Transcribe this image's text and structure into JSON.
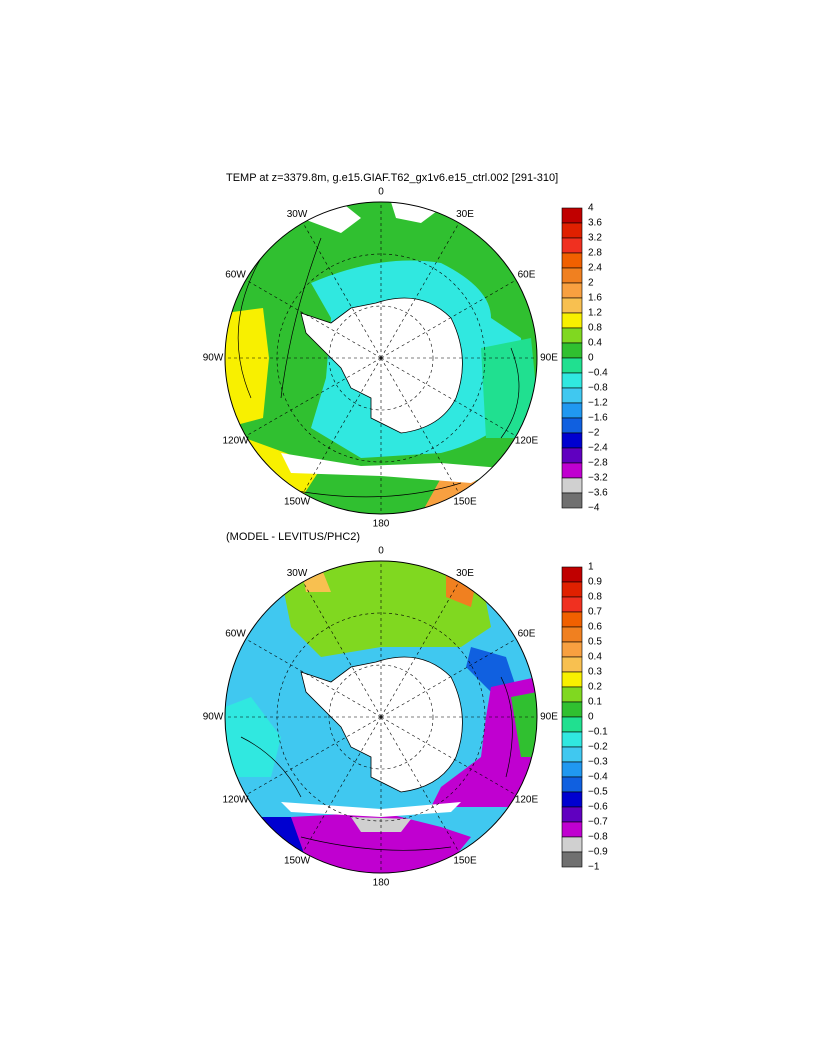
{
  "panels": [
    {
      "title": "TEMP at z=3379.8m, g.e15.GIAF.T62_gx1v6.e15_ctrl.002 [291-310]",
      "lon_labels": [
        "0",
        "30E",
        "60E",
        "90E",
        "120E",
        "150E",
        "180",
        "150W",
        "120W",
        "90W",
        "60W",
        "30W"
      ],
      "colorbar": {
        "labels": [
          "4",
          "3.6",
          "3.2",
          "2.8",
          "2.4",
          "2",
          "1.6",
          "1.2",
          "0.8",
          "0.4",
          "0",
          "−0.4",
          "−0.8",
          "−1.2",
          "−1.6",
          "−2",
          "−2.4",
          "−2.8",
          "−3.2",
          "−3.6",
          "−4"
        ],
        "colors": [
          "#c00000",
          "#e02000",
          "#f03020",
          "#f06000",
          "#f08020",
          "#f8a040",
          "#f8c050",
          "#f8f000",
          "#80d820",
          "#30c030",
          "#20e090",
          "#30e8e0",
          "#40c8f0",
          "#2098f0",
          "#1060e0",
          "#0000d0",
          "#6000c0",
          "#c000d0",
          "#d0d0d0",
          "#707070"
        ]
      }
    },
    {
      "title": "(MODEL - LEVITUS/PHC2)",
      "lon_labels": [
        "0",
        "30E",
        "60E",
        "90E",
        "120E",
        "150E",
        "180",
        "150W",
        "120W",
        "90W",
        "60W",
        "30W"
      ],
      "colorbar": {
        "labels": [
          "1",
          "0.9",
          "0.8",
          "0.7",
          "0.6",
          "0.5",
          "0.4",
          "0.3",
          "0.2",
          "0.1",
          "0",
          "−0.1",
          "−0.2",
          "−0.3",
          "−0.4",
          "−0.5",
          "−0.6",
          "−0.7",
          "−0.8",
          "−0.9",
          "−1"
        ],
        "colors": [
          "#c00000",
          "#e02000",
          "#f03020",
          "#f06000",
          "#f08020",
          "#f8a040",
          "#f8c050",
          "#f8f000",
          "#80d820",
          "#30c030",
          "#20e090",
          "#30e8e0",
          "#40c8f0",
          "#2098f0",
          "#1060e0",
          "#0000d0",
          "#6000c0",
          "#c000d0",
          "#d0d0d0",
          "#707070"
        ]
      }
    }
  ]
}
